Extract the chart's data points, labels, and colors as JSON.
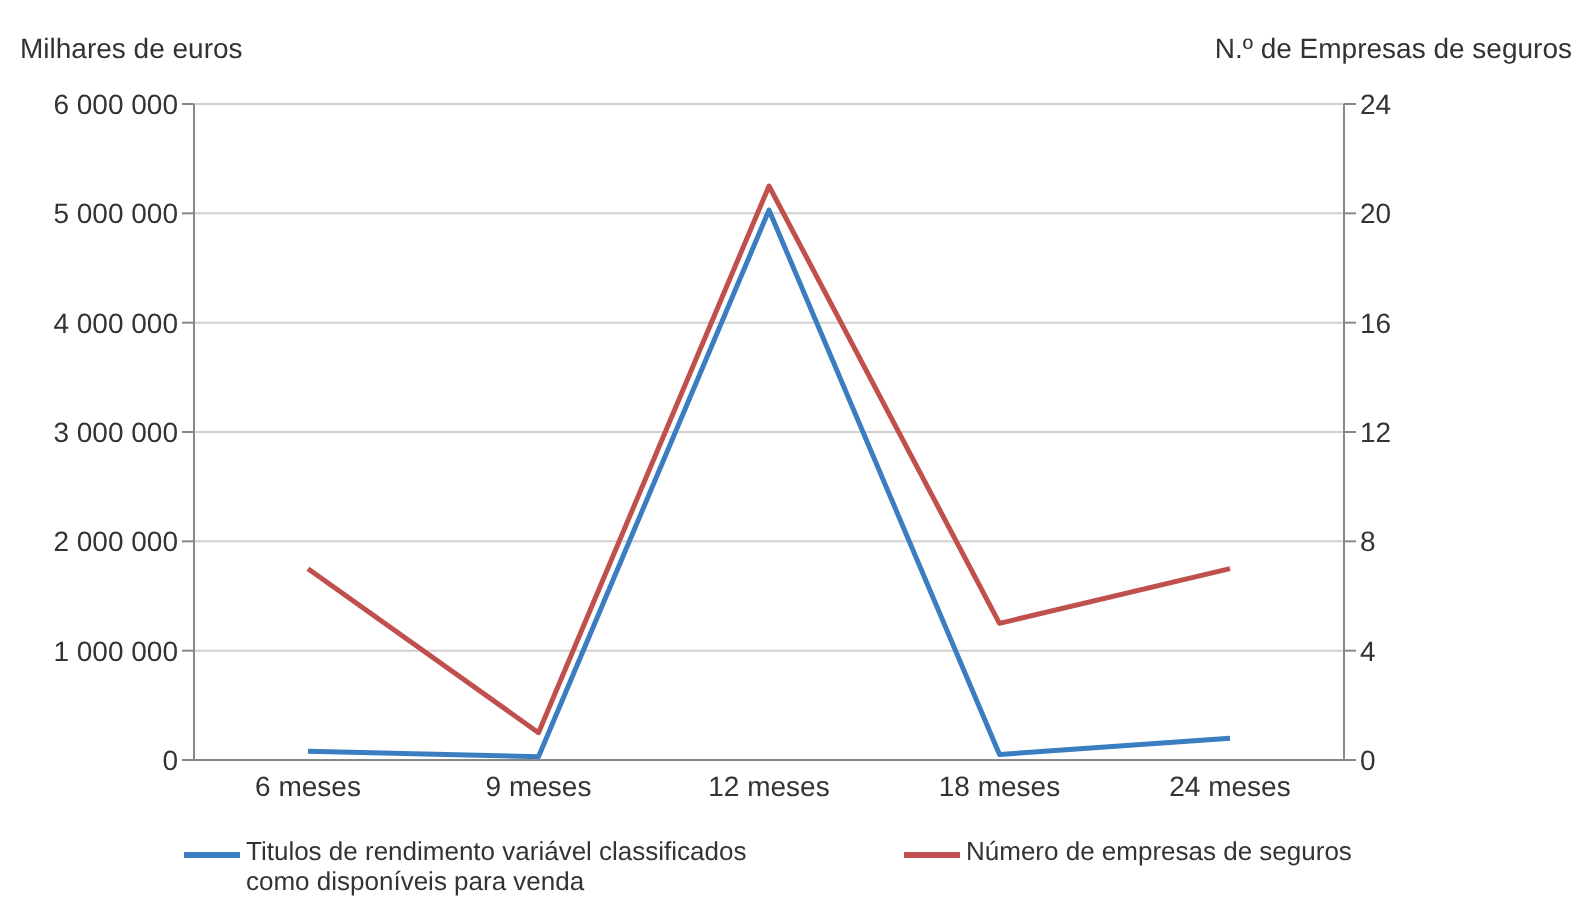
{
  "chart_data": {
    "type": "line",
    "ylabel": "Milhares de euros",
    "y2label": "N.º de Empresas de seguros",
    "categories": [
      "6 meses",
      "9 meses",
      "12 meses",
      "18 meses",
      "24 meses"
    ],
    "series": [
      {
        "name": "Titulos de rendimento variável classificados como disponíveis para venda",
        "color": "#3b7dc1",
        "values": [
          80000,
          30000,
          5030000,
          50000,
          200000
        ]
      },
      {
        "name": "Número de empresas de seguros",
        "color": "#c0504d",
        "axis": "y2",
        "values": [
          7,
          1,
          21,
          5,
          7
        ]
      }
    ],
    "ylim": [
      0,
      6000000
    ],
    "yticks": [
      {
        "value": 0,
        "label": "0"
      },
      {
        "value": 1000000,
        "label": "1 000 000"
      },
      {
        "value": 2000000,
        "label": "2 000 000"
      },
      {
        "value": 3000000,
        "label": "3 000 000"
      },
      {
        "value": 4000000,
        "label": "4 000 000"
      },
      {
        "value": 5000000,
        "label": "5 000 000"
      },
      {
        "value": 6000000,
        "label": "6 000 000"
      }
    ],
    "y2lim": [
      0,
      24
    ],
    "y2ticks": [
      0,
      4,
      8,
      12,
      16,
      20,
      24
    ],
    "grid": "y",
    "legend": "bottom",
    "marker": "none",
    "line_style": "solid"
  }
}
